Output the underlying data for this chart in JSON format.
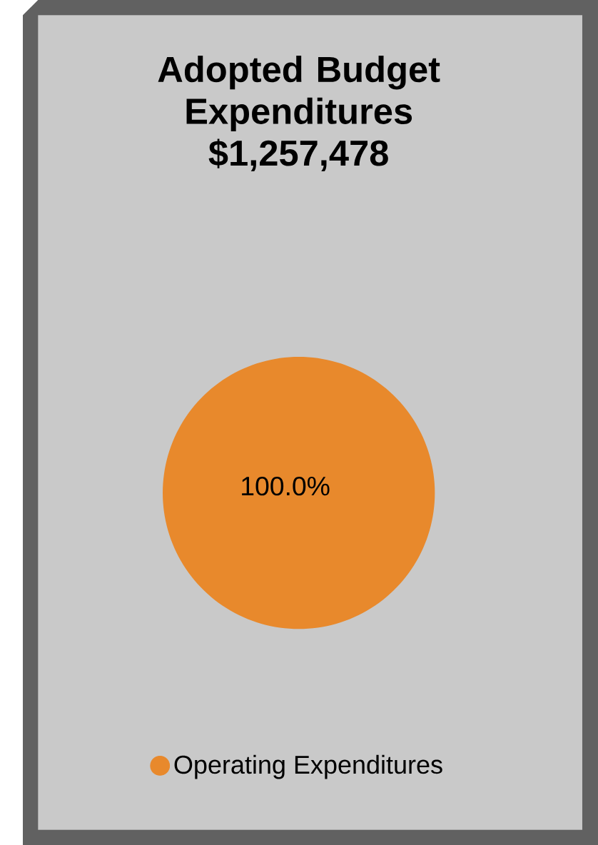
{
  "chart_data": {
    "type": "pie",
    "title": "Adopted Budget Expenditures $1,257,478",
    "categories": [
      "Operating Expenditures"
    ],
    "values": [
      100
    ],
    "colors": [
      "#e8892c"
    ],
    "value_labels": [
      "100.0%"
    ],
    "legend": "bottom"
  }
}
